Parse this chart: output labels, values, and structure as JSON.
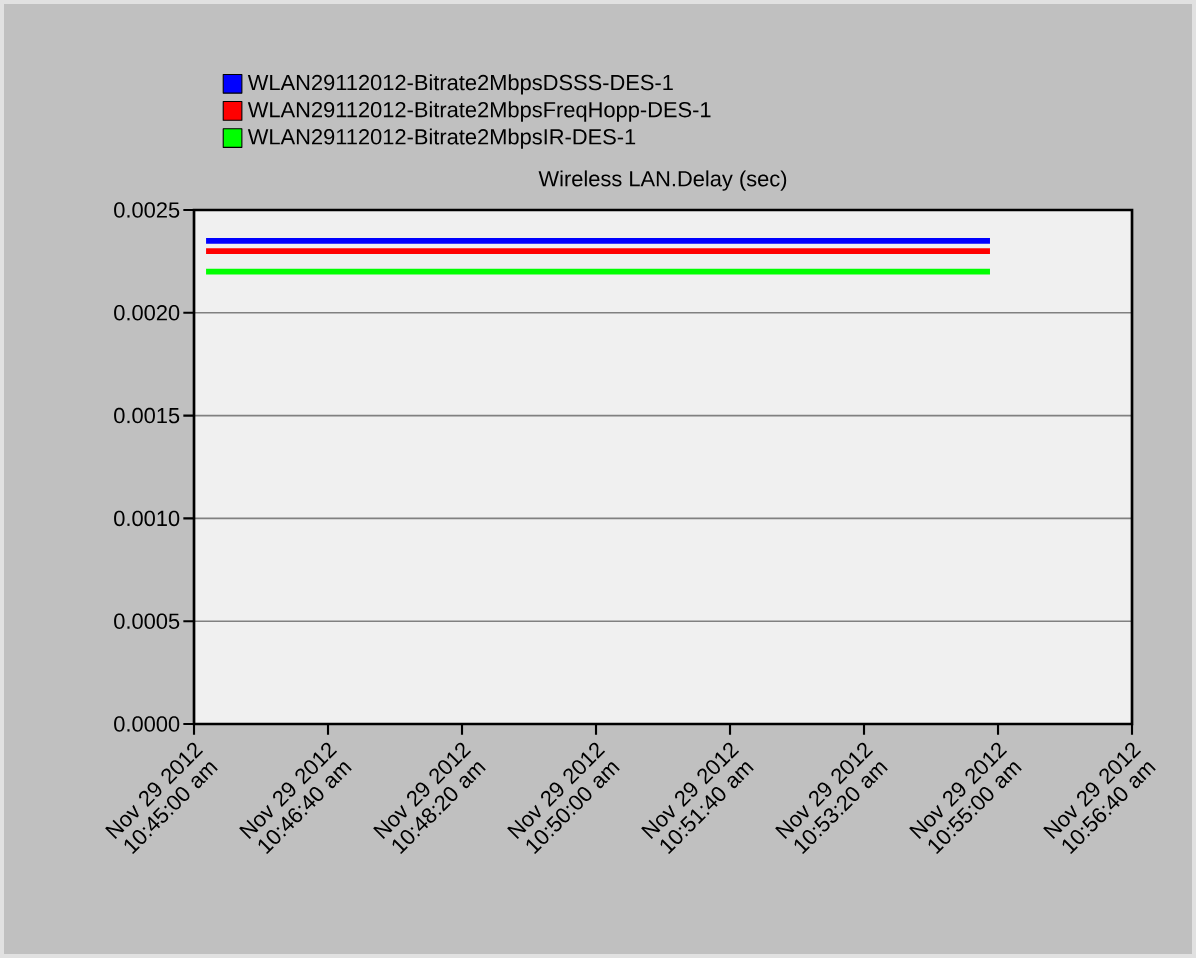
{
  "chart_data": {
    "type": "line",
    "title": "Wireless LAN.Delay (sec)",
    "series": [
      {
        "name": "WLAN29112012-Bitrate2MbpsDSSS-DES-1",
        "color": "#0000ff",
        "x": [
          "2012-11-29T10:45:09",
          "2012-11-29T10:54:54"
        ],
        "values": [
          0.00235,
          0.00235
        ]
      },
      {
        "name": "WLAN29112012-Bitrate2MbpsFreqHopp-DES-1",
        "color": "#ff0000",
        "x": [
          "2012-11-29T10:45:09",
          "2012-11-29T10:54:54"
        ],
        "values": [
          0.0023,
          0.0023
        ]
      },
      {
        "name": "WLAN29112012-Bitrate2MbpsIR-DES-1",
        "color": "#00ff00",
        "x": [
          "2012-11-29T10:45:09",
          "2012-11-29T10:54:54"
        ],
        "values": [
          0.0022,
          0.0022
        ]
      }
    ],
    "xlim": [
      "2012-11-29T10:45:00",
      "2012-11-29T10:56:40"
    ],
    "xticks": [
      {
        "value": "2012-11-29T10:45:00",
        "label": "Nov 29 2012 10:45:00 am"
      },
      {
        "value": "2012-11-29T10:46:40",
        "label": "Nov 29 2012 10:46:40 am"
      },
      {
        "value": "2012-11-29T10:48:20",
        "label": "Nov 29 2012 10:48:20 am"
      },
      {
        "value": "2012-11-29T10:50:00",
        "label": "Nov 29 2012 10:50:00 am"
      },
      {
        "value": "2012-11-29T10:51:40",
        "label": "Nov 29 2012 10:51:40 am"
      },
      {
        "value": "2012-11-29T10:53:20",
        "label": "Nov 29 2012 10:53:20 am"
      },
      {
        "value": "2012-11-29T10:55:00",
        "label": "Nov 29 2012 10:55:00 am"
      },
      {
        "value": "2012-11-29T10:56:40",
        "label": "Nov 29 2012 10:56:40 am"
      }
    ],
    "ylim": [
      0,
      0.0025
    ],
    "yticks": [
      {
        "value": 0,
        "label": "0.0000"
      },
      {
        "value": 0.0005,
        "label": "0.0005"
      },
      {
        "value": 0.001,
        "label": "0.0010"
      },
      {
        "value": 0.0015,
        "label": "0.0015"
      },
      {
        "value": 0.002,
        "label": "0.0020"
      },
      {
        "value": 0.0025,
        "label": "0.0025"
      }
    ],
    "grid": "y",
    "legend": "top",
    "marker": "none",
    "line_style": "solid"
  }
}
